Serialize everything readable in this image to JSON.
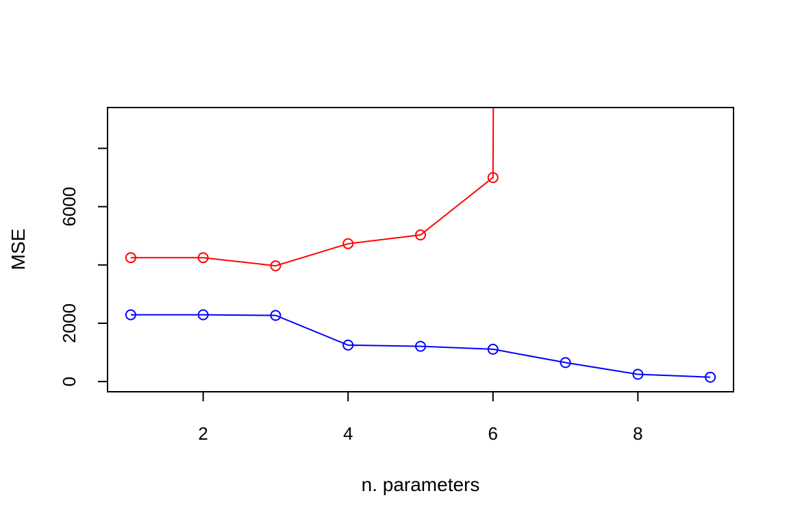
{
  "chart_data": {
    "type": "line",
    "xlabel": "n. parameters",
    "ylabel": "MSE",
    "xlim": [
      0.68,
      9.32
    ],
    "ylim": [
      -350,
      9400
    ],
    "x_ticks": [
      2,
      4,
      6,
      8
    ],
    "y_ticks": [
      0,
      2000,
      4000,
      6000,
      8000
    ],
    "y_tick_labels": [
      {
        "value": 0,
        "label": "0"
      },
      {
        "value": 2000,
        "label": "2000"
      },
      {
        "value": 6000,
        "label": "6000"
      }
    ],
    "grid": false,
    "legend": "none",
    "series": [
      {
        "color": "#ff0000",
        "x": [
          1,
          2,
          3,
          4,
          5,
          6,
          6.01
        ],
        "y": [
          4250,
          4250,
          3970,
          4730,
          5030,
          7000,
          12000
        ]
      },
      {
        "color": "#0000ff",
        "x": [
          1,
          2,
          3,
          4,
          5,
          6,
          7,
          8,
          9
        ],
        "y": [
          2290,
          2290,
          2270,
          1250,
          1210,
          1110,
          650,
          250,
          150
        ]
      }
    ],
    "markers": [
      {
        "color": "#ff0000",
        "x": [
          1,
          2,
          3,
          4,
          5,
          6
        ]
      },
      {
        "color": "#0000ff",
        "x": [
          1,
          2,
          3,
          4,
          5,
          6,
          7,
          8,
          9
        ]
      }
    ]
  }
}
